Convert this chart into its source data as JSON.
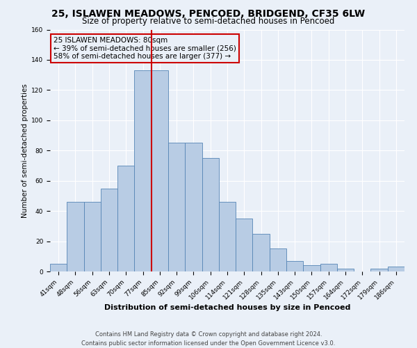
{
  "title": "25, ISLAWEN MEADOWS, PENCOED, BRIDGEND, CF35 6LW",
  "subtitle": "Size of property relative to semi-detached houses in Pencoed",
  "xlabel": "Distribution of semi-detached houses by size in Pencoed",
  "ylabel": "Number of semi-detached properties",
  "categories": [
    "41sqm",
    "48sqm",
    "56sqm",
    "63sqm",
    "70sqm",
    "77sqm",
    "85sqm",
    "92sqm",
    "99sqm",
    "106sqm",
    "114sqm",
    "121sqm",
    "128sqm",
    "135sqm",
    "143sqm",
    "150sqm",
    "157sqm",
    "164sqm",
    "172sqm",
    "179sqm",
    "186sqm"
  ],
  "values": [
    5,
    46,
    46,
    55,
    70,
    133,
    133,
    85,
    85,
    75,
    46,
    35,
    25,
    15,
    7,
    4,
    5,
    2,
    0,
    2,
    3
  ],
  "bar_color": "#b8cce4",
  "bar_edge_color": "#5585b5",
  "vline_color": "#cc0000",
  "annotation_title": "25 ISLAWEN MEADOWS: 80sqm",
  "annotation_line1": "← 39% of semi-detached houses are smaller (256)",
  "annotation_line2": "58% of semi-detached houses are larger (377) →",
  "annotation_box_color": "#cc0000",
  "ylim": [
    0,
    160
  ],
  "yticks": [
    0,
    20,
    40,
    60,
    80,
    100,
    120,
    140,
    160
  ],
  "footer_line1": "Contains HM Land Registry data © Crown copyright and database right 2024.",
  "footer_line2": "Contains public sector information licensed under the Open Government Licence v3.0.",
  "bg_color": "#eaf0f8",
  "grid_color": "#ffffff",
  "title_fontsize": 10,
  "subtitle_fontsize": 8.5,
  "xlabel_fontsize": 8,
  "ylabel_fontsize": 7.5,
  "tick_fontsize": 6.5,
  "footer_fontsize": 6,
  "annotation_fontsize": 7.5
}
